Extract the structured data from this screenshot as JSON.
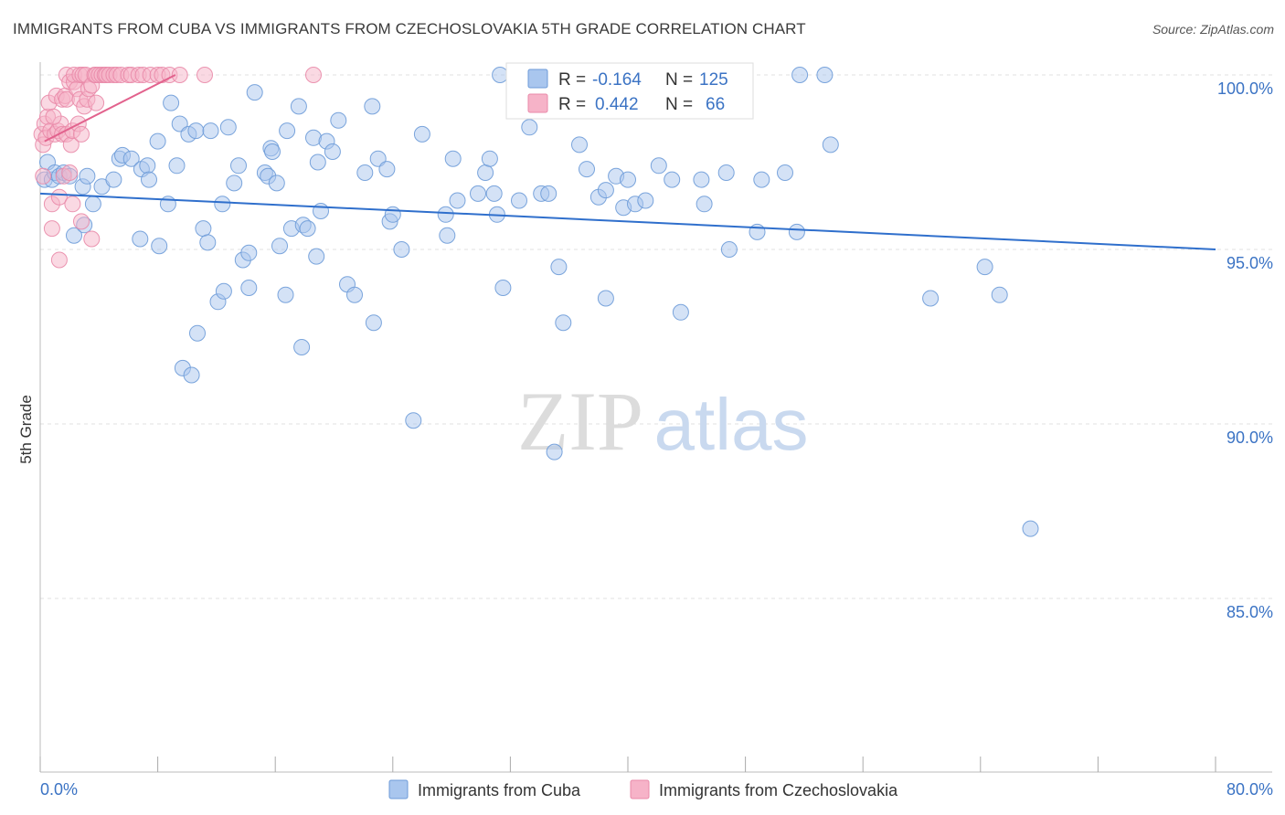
{
  "header": {
    "title": "IMMIGRANTS FROM CUBA VS IMMIGRANTS FROM CZECHOSLOVAKIA 5TH GRADE CORRELATION CHART",
    "source": "Source: ZipAtlas.com"
  },
  "watermark": {
    "part1": "ZIP",
    "part2": "atlas"
  },
  "stats_box": {
    "rows": [
      {
        "r_label": "R =",
        "r_value": "-0.164",
        "n_label": "N =",
        "n_value": "125",
        "color": "#a9c6ee"
      },
      {
        "r_label": "R =",
        "r_value": "0.442",
        "n_label": "N =",
        "n_value": "66",
        "color": "#f6b3c8"
      }
    ]
  },
  "chart_data": {
    "type": "scatter",
    "title": "IMMIGRANTS FROM CUBA VS IMMIGRANTS FROM CZECHOSLOVAKIA 5TH GRADE CORRELATION CHART",
    "xlabel": "",
    "ylabel": "5th Grade",
    "xlim": [
      0,
      80
    ],
    "ylim": [
      80.5,
      100.9
    ],
    "x_tick_labels": [
      {
        "value": 0,
        "label": "0.0%"
      },
      {
        "value": 80,
        "label": "80.0%"
      }
    ],
    "y_tick_labels": [
      {
        "value": 100,
        "label": "100.0%"
      },
      {
        "value": 95,
        "label": "95.0%"
      },
      {
        "value": 90,
        "label": "90.0%"
      },
      {
        "value": 85,
        "label": "85.0%"
      }
    ],
    "grid": true,
    "legend_position": "bottom-center",
    "series": [
      {
        "name": "Immigrants from Cuba",
        "color": "#a9c6ee",
        "stroke": "#6d9bd8",
        "trend_color": "#2f6fcc",
        "trend": {
          "x": [
            0,
            80
          ],
          "y": [
            96.6,
            95.0
          ]
        },
        "points": [
          [
            0.3,
            97.0
          ],
          [
            0.5,
            97.5
          ],
          [
            0.8,
            97.0
          ],
          [
            1.0,
            97.2
          ],
          [
            1.3,
            97.1
          ],
          [
            1.6,
            97.2
          ],
          [
            2.0,
            97.1
          ],
          [
            2.3,
            95.4
          ],
          [
            2.9,
            96.8
          ],
          [
            3.0,
            95.7
          ],
          [
            3.2,
            97.1
          ],
          [
            3.6,
            96.3
          ],
          [
            4.2,
            96.8
          ],
          [
            5.0,
            97.0
          ],
          [
            5.4,
            97.6
          ],
          [
            5.6,
            97.7
          ],
          [
            6.2,
            97.6
          ],
          [
            6.9,
            97.3
          ],
          [
            7.3,
            97.4
          ],
          [
            7.4,
            97.0
          ],
          [
            6.8,
            95.3
          ],
          [
            8.0,
            98.1
          ],
          [
            8.1,
            95.1
          ],
          [
            8.7,
            96.3
          ],
          [
            8.9,
            99.2
          ],
          [
            9.3,
            97.4
          ],
          [
            9.5,
            98.6
          ],
          [
            9.7,
            91.6
          ],
          [
            10.3,
            91.4
          ],
          [
            10.1,
            98.3
          ],
          [
            10.7,
            92.6
          ],
          [
            10.6,
            98.4
          ],
          [
            11.1,
            95.6
          ],
          [
            11.4,
            95.2
          ],
          [
            11.6,
            98.4
          ],
          [
            12.1,
            93.5
          ],
          [
            12.4,
            96.3
          ],
          [
            12.5,
            93.8
          ],
          [
            12.8,
            98.5
          ],
          [
            13.2,
            96.9
          ],
          [
            13.5,
            97.4
          ],
          [
            13.8,
            94.7
          ],
          [
            14.2,
            94.9
          ],
          [
            14.2,
            93.9
          ],
          [
            14.6,
            99.5
          ],
          [
            15.3,
            97.2
          ],
          [
            15.5,
            97.1
          ],
          [
            15.7,
            97.9
          ],
          [
            15.8,
            97.8
          ],
          [
            16.1,
            96.9
          ],
          [
            16.3,
            95.1
          ],
          [
            16.7,
            93.7
          ],
          [
            16.8,
            98.4
          ],
          [
            17.1,
            95.6
          ],
          [
            17.6,
            99.1
          ],
          [
            17.8,
            92.2
          ],
          [
            17.9,
            95.7
          ],
          [
            18.2,
            95.6
          ],
          [
            18.8,
            94.8
          ],
          [
            18.6,
            98.2
          ],
          [
            18.9,
            97.5
          ],
          [
            19.1,
            96.1
          ],
          [
            19.5,
            98.1
          ],
          [
            19.9,
            97.8
          ],
          [
            20.3,
            98.7
          ],
          [
            20.9,
            94.0
          ],
          [
            21.4,
            93.7
          ],
          [
            22.1,
            97.2
          ],
          [
            22.6,
            99.1
          ],
          [
            22.7,
            92.9
          ],
          [
            23.0,
            97.6
          ],
          [
            23.6,
            97.3
          ],
          [
            23.8,
            95.8
          ],
          [
            24.0,
            96.0
          ],
          [
            24.6,
            95.0
          ],
          [
            25.4,
            90.1
          ],
          [
            26.0,
            98.3
          ],
          [
            27.6,
            96.0
          ],
          [
            27.7,
            95.4
          ],
          [
            28.1,
            97.6
          ],
          [
            28.4,
            96.4
          ],
          [
            29.8,
            96.6
          ],
          [
            30.3,
            97.2
          ],
          [
            30.6,
            97.6
          ],
          [
            30.9,
            96.6
          ],
          [
            31.1,
            96.0
          ],
          [
            31.5,
            93.9
          ],
          [
            32.6,
            96.4
          ],
          [
            33.3,
            98.5
          ],
          [
            34.1,
            96.6
          ],
          [
            34.6,
            96.6
          ],
          [
            35.0,
            89.2
          ],
          [
            35.3,
            94.5
          ],
          [
            35.6,
            92.9
          ],
          [
            36.7,
            98.0
          ],
          [
            37.2,
            97.3
          ],
          [
            38.0,
            96.5
          ],
          [
            38.5,
            96.7
          ],
          [
            38.5,
            93.6
          ],
          [
            39.2,
            97.1
          ],
          [
            39.7,
            96.2
          ],
          [
            40.0,
            97.0
          ],
          [
            40.5,
            96.3
          ],
          [
            41.2,
            96.4
          ],
          [
            42.1,
            97.4
          ],
          [
            43.0,
            97.0
          ],
          [
            43.6,
            93.2
          ],
          [
            45.0,
            97.0
          ],
          [
            45.2,
            96.3
          ],
          [
            46.7,
            97.2
          ],
          [
            46.9,
            95.0
          ],
          [
            48.8,
            95.5
          ],
          [
            49.1,
            97.0
          ],
          [
            50.7,
            97.2
          ],
          [
            51.5,
            95.5
          ],
          [
            53.4,
            100.0
          ],
          [
            53.8,
            98.0
          ],
          [
            60.6,
            93.6
          ],
          [
            64.3,
            94.5
          ],
          [
            65.3,
            93.7
          ],
          [
            67.4,
            87.0
          ],
          [
            32.4,
            99.3
          ],
          [
            51.7,
            100.0
          ],
          [
            31.3,
            100.0
          ],
          [
            40.4,
            99.5
          ]
        ]
      },
      {
        "name": "Immigrants from Czechoslovakia",
        "color": "#f6b3c8",
        "stroke": "#e98aa9",
        "trend_color": "#e2628d",
        "trend": {
          "x": [
            0.3,
            9.2
          ],
          "y": [
            98.1,
            100.0
          ]
        },
        "points": [
          [
            0.1,
            98.3
          ],
          [
            0.2,
            98.0
          ],
          [
            0.2,
            97.1
          ],
          [
            0.3,
            98.6
          ],
          [
            0.4,
            98.2
          ],
          [
            0.5,
            98.8
          ],
          [
            0.6,
            99.2
          ],
          [
            0.7,
            98.4
          ],
          [
            0.8,
            95.6
          ],
          [
            0.8,
            96.3
          ],
          [
            1.0,
            98.3
          ],
          [
            1.1,
            99.4
          ],
          [
            1.2,
            98.4
          ],
          [
            1.3,
            96.5
          ],
          [
            1.3,
            94.7
          ],
          [
            1.4,
            98.6
          ],
          [
            1.5,
            99.3
          ],
          [
            1.5,
            98.3
          ],
          [
            1.6,
            97.1
          ],
          [
            1.7,
            99.4
          ],
          [
            1.8,
            99.3
          ],
          [
            1.8,
            98.3
          ],
          [
            1.8,
            100.0
          ],
          [
            2.0,
            97.2
          ],
          [
            2.0,
            99.8
          ],
          [
            2.1,
            98.0
          ],
          [
            2.2,
            98.4
          ],
          [
            2.2,
            96.3
          ],
          [
            2.3,
            99.8
          ],
          [
            2.3,
            100.0
          ],
          [
            2.5,
            99.6
          ],
          [
            2.6,
            98.6
          ],
          [
            2.7,
            100.0
          ],
          [
            2.7,
            99.3
          ],
          [
            2.8,
            98.3
          ],
          [
            2.8,
            95.8
          ],
          [
            2.9,
            100.0
          ],
          [
            3.0,
            99.1
          ],
          [
            3.1,
            100.0
          ],
          [
            3.2,
            99.3
          ],
          [
            3.3,
            99.6
          ],
          [
            3.5,
            99.7
          ],
          [
            3.5,
            95.3
          ],
          [
            3.7,
            100.0
          ],
          [
            3.8,
            99.2
          ],
          [
            3.8,
            100.0
          ],
          [
            4.0,
            100.0
          ],
          [
            4.2,
            100.0
          ],
          [
            4.4,
            100.0
          ],
          [
            4.5,
            100.0
          ],
          [
            4.7,
            100.0
          ],
          [
            5.0,
            100.0
          ],
          [
            5.2,
            100.0
          ],
          [
            5.5,
            100.0
          ],
          [
            6.0,
            100.0
          ],
          [
            6.2,
            100.0
          ],
          [
            6.7,
            100.0
          ],
          [
            7.0,
            100.0
          ],
          [
            7.5,
            100.0
          ],
          [
            8.0,
            100.0
          ],
          [
            8.3,
            100.0
          ],
          [
            8.8,
            100.0
          ],
          [
            9.5,
            100.0
          ],
          [
            11.2,
            100.0
          ],
          [
            18.6,
            100.0
          ],
          [
            0.9,
            98.8
          ]
        ]
      }
    ]
  }
}
